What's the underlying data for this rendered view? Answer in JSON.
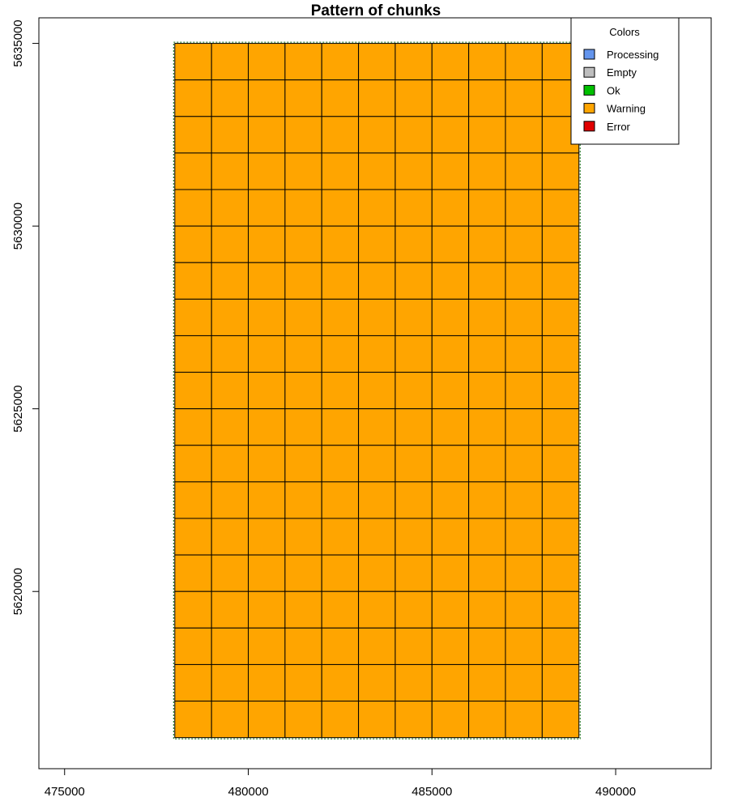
{
  "chart_data": {
    "type": "heatmap",
    "title": "Pattern of chunks",
    "xlabel": "",
    "ylabel": "",
    "xlim": [
      474300,
      492600
    ],
    "ylim": [
      5615150,
      5635700
    ],
    "x_ticks": [
      475000,
      480000,
      485000,
      490000
    ],
    "y_ticks": [
      5620000,
      5625000,
      5630000,
      5635000
    ],
    "extent": {
      "xmin": 478000,
      "xmax": 489000,
      "ymin": 5616000,
      "ymax": 5635000
    },
    "chunk_size": 1000,
    "columns": 11,
    "rows": 19,
    "chunk_status": "Warning",
    "legend": {
      "title": "Colors",
      "placement": "top-right",
      "entries": [
        {
          "label": "Processing",
          "color": "#6495ED"
        },
        {
          "label": "Empty",
          "color": "#BEBEBE"
        },
        {
          "label": "Ok",
          "color": "#00C000"
        },
        {
          "label": "Warning",
          "color": "#FFA500"
        },
        {
          "label": "Error",
          "color": "#E00000"
        }
      ]
    }
  }
}
